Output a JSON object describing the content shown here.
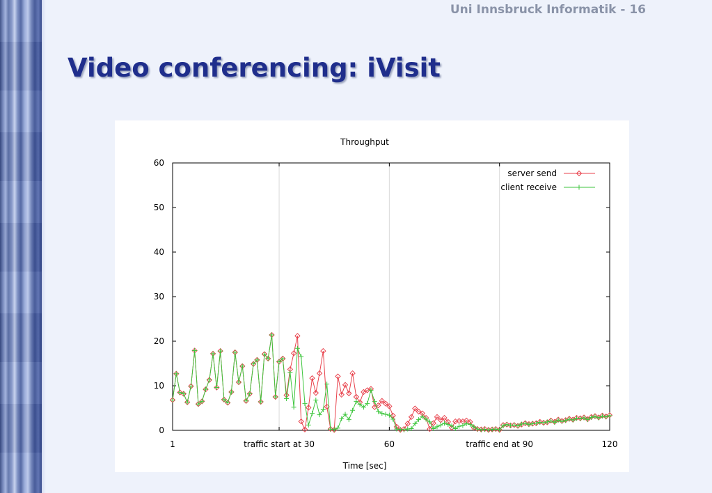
{
  "header": {
    "text": "Uni Innsbruck Informatik - 16"
  },
  "slide": {
    "title": "Video conferencing: iVisit"
  },
  "chart_data": {
    "type": "line",
    "title": "Throughput",
    "xlabel": "Time [sec]",
    "ylabel": "",
    "xlim": [
      1,
      120
    ],
    "ylim": [
      0,
      60
    ],
    "x_ticks": [
      {
        "value": 1,
        "label": "1"
      },
      {
        "value": 30,
        "label": "traffic start at 30"
      },
      {
        "value": 60,
        "label": "60"
      },
      {
        "value": 90,
        "label": "traffic end at 90"
      },
      {
        "value": 120,
        "label": "120"
      }
    ],
    "y_ticks": [
      0,
      10,
      20,
      30,
      40,
      50,
      60
    ],
    "vertical_grid_at": [
      30,
      60,
      90
    ],
    "legend_position": "top-right",
    "series": [
      {
        "name": "server send",
        "color": "#e8414b",
        "marker": "diamond",
        "x": [
          1,
          2,
          3,
          4,
          5,
          6,
          7,
          8,
          9,
          10,
          11,
          12,
          13,
          14,
          15,
          16,
          17,
          18,
          19,
          20,
          21,
          22,
          23,
          24,
          25,
          26,
          27,
          28,
          29,
          30,
          31,
          32,
          33,
          34,
          35,
          36,
          37,
          38,
          39,
          40,
          41,
          42,
          43,
          44,
          45,
          46,
          47,
          48,
          49,
          50,
          51,
          52,
          53,
          54,
          55,
          56,
          57,
          58,
          59,
          60,
          61,
          62,
          63,
          64,
          65,
          66,
          67,
          68,
          69,
          70,
          71,
          72,
          73,
          74,
          75,
          76,
          77,
          78,
          79,
          80,
          81,
          82,
          83,
          84,
          85,
          86,
          87,
          88,
          89,
          90,
          91,
          92,
          93,
          94,
          95,
          96,
          97,
          98,
          99,
          100,
          101,
          102,
          103,
          104,
          105,
          106,
          107,
          108,
          109,
          110,
          111,
          112,
          113,
          114,
          115,
          116,
          117,
          118,
          119,
          120
        ],
        "values": [
          6.8,
          12.7,
          8.5,
          8.2,
          6.3,
          9.9,
          17.9,
          5.9,
          6.5,
          9.2,
          11.3,
          17.2,
          9.6,
          17.8,
          6.9,
          6.2,
          8.6,
          17.5,
          10.8,
          14.4,
          6.6,
          8.2,
          14.9,
          15.8,
          6.4,
          17.1,
          16.1,
          21.4,
          7.5,
          15.4,
          16.1,
          7.9,
          13.7,
          17.3,
          21.2,
          2.0,
          0.2,
          5.1,
          11.7,
          8.4,
          12.8,
          17.8,
          5.3,
          0.3,
          0.1,
          12.1,
          8.0,
          10.2,
          8.3,
          12.8,
          7.5,
          6.3,
          8.6,
          9.0,
          9.3,
          5.2,
          5.6,
          6.6,
          6.0,
          5.4,
          3.3,
          0.8,
          0.1,
          0.3,
          1.5,
          3.0,
          4.9,
          4.2,
          3.8,
          2.8,
          0.3,
          1.6,
          3.0,
          2.3,
          2.8,
          1.9,
          0.6,
          2.0,
          2.1,
          2.0,
          2.2,
          1.9,
          0.6,
          0.3,
          0.2,
          0.3,
          0.1,
          0.2,
          0.3,
          0.1,
          1.2,
          1.3,
          1.1,
          1.2,
          1.0,
          1.3,
          1.6,
          1.4,
          1.5,
          1.6,
          1.9,
          1.7,
          1.8,
          2.2,
          1.9,
          2.4,
          2.1,
          2.3,
          2.6,
          2.4,
          2.8,
          2.7,
          2.9,
          2.5,
          3.0,
          3.2,
          2.9,
          3.3,
          3.1,
          3.4
        ]
      },
      {
        "name": "client receive",
        "color": "#3ec63e",
        "marker": "plus",
        "x": [
          1,
          2,
          3,
          4,
          5,
          6,
          7,
          8,
          9,
          10,
          11,
          12,
          13,
          14,
          15,
          16,
          17,
          18,
          19,
          20,
          21,
          22,
          23,
          24,
          25,
          26,
          27,
          28,
          29,
          30,
          31,
          32,
          33,
          34,
          35,
          36,
          37,
          38,
          39,
          40,
          41,
          42,
          43,
          44,
          45,
          46,
          47,
          48,
          49,
          50,
          51,
          52,
          53,
          54,
          55,
          56,
          57,
          58,
          59,
          60,
          61,
          62,
          63,
          64,
          65,
          66,
          67,
          68,
          69,
          70,
          71,
          72,
          73,
          74,
          75,
          76,
          77,
          78,
          79,
          80,
          81,
          82,
          83,
          84,
          85,
          86,
          87,
          88,
          89,
          90,
          91,
          92,
          93,
          94,
          95,
          96,
          97,
          98,
          99,
          100,
          101,
          102,
          103,
          104,
          105,
          106,
          107,
          108,
          109,
          110,
          111,
          112,
          113,
          114,
          115,
          116,
          117,
          118,
          119,
          120
        ],
        "values": [
          6.8,
          12.7,
          8.5,
          8.2,
          6.3,
          9.9,
          17.9,
          5.9,
          6.5,
          9.2,
          11.3,
          17.2,
          9.6,
          17.8,
          6.9,
          6.2,
          8.6,
          17.5,
          10.8,
          14.4,
          6.6,
          8.2,
          14.9,
          15.8,
          6.4,
          17.1,
          16.1,
          21.4,
          7.5,
          15.4,
          16.1,
          7.1,
          13.0,
          5.2,
          18.4,
          16.5,
          6.0,
          1.2,
          3.8,
          6.8,
          3.5,
          4.6,
          10.4,
          0.3,
          0.2,
          0.5,
          2.6,
          3.6,
          2.4,
          4.5,
          6.5,
          5.8,
          5.2,
          6.0,
          9.0,
          6.5,
          4.2,
          3.8,
          3.6,
          3.4,
          2.5,
          0.3,
          0.2,
          0.1,
          0.3,
          0.4,
          1.5,
          2.4,
          3.1,
          2.5,
          1.9,
          0.4,
          0.8,
          1.2,
          1.6,
          1.3,
          1.0,
          0.4,
          0.9,
          1.1,
          1.5,
          1.3,
          0.8,
          0.3,
          0.1,
          0.2,
          0.1,
          0.2,
          0.3,
          0.1,
          1.0,
          1.3,
          1.1,
          1.2,
          1.0,
          1.4,
          1.6,
          1.3,
          1.5,
          1.6,
          1.8,
          1.7,
          1.9,
          2.1,
          1.8,
          2.3,
          2.0,
          2.2,
          2.5,
          2.3,
          2.7,
          2.6,
          2.8,
          2.4,
          2.9,
          3.1,
          2.8,
          3.2,
          3.0,
          3.3
        ]
      }
    ]
  }
}
